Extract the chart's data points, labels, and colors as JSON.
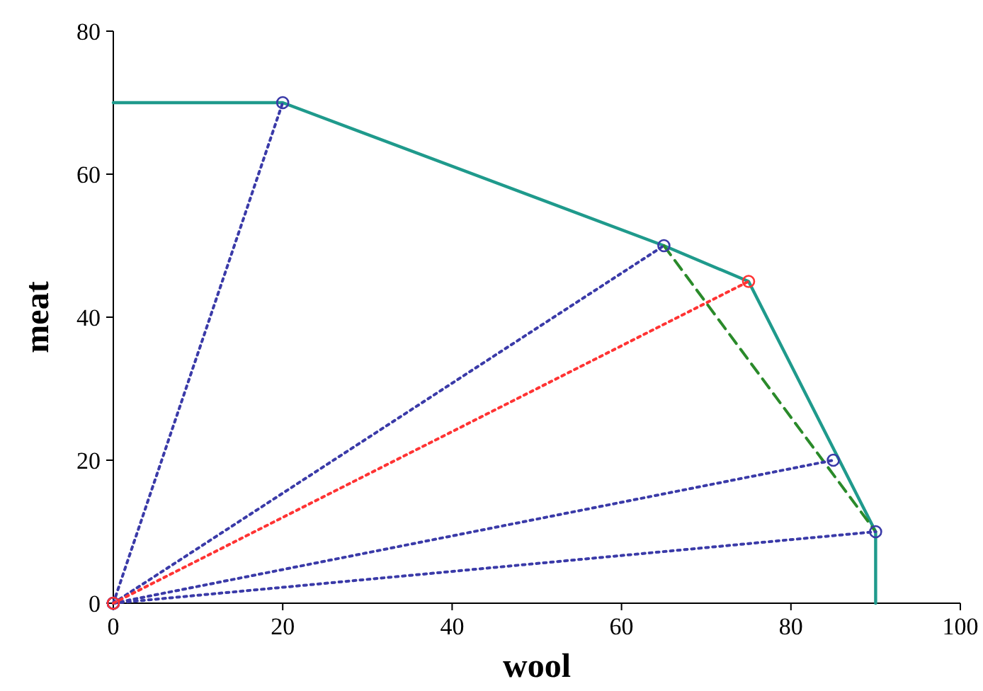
{
  "chart_data": {
    "type": "line",
    "xlabel": "wool",
    "ylabel": "meat",
    "xlim": [
      0,
      100
    ],
    "ylim": [
      0,
      80
    ],
    "xticks": [
      0,
      20,
      40,
      60,
      80,
      100
    ],
    "yticks": [
      0,
      20,
      40,
      60,
      80
    ],
    "grid": false,
    "series": [
      {
        "x": [
          0,
          20,
          65,
          75,
          90,
          90
        ],
        "values": [
          70,
          70,
          50,
          45,
          10,
          0
        ],
        "color": "#1f9a8c",
        "line_style": "solid",
        "marker": "none"
      },
      {
        "x": [
          65,
          90
        ],
        "values": [
          50,
          10
        ],
        "color": "#2a8a2a",
        "line_style": "dashed",
        "marker": "none"
      },
      {
        "x": [
          0,
          20
        ],
        "values": [
          0,
          70
        ],
        "color": "#3a3aa8",
        "line_style": "dotted",
        "marker": "circle"
      },
      {
        "x": [
          0,
          65
        ],
        "values": [
          0,
          50
        ],
        "color": "#3a3aa8",
        "line_style": "dotted",
        "marker": "circle"
      },
      {
        "x": [
          0,
          85
        ],
        "values": [
          0,
          20
        ],
        "color": "#3a3aa8",
        "line_style": "dotted",
        "marker": "circle"
      },
      {
        "x": [
          0,
          90
        ],
        "values": [
          0,
          10
        ],
        "color": "#3a3aa8",
        "line_style": "dotted",
        "marker": "circle"
      },
      {
        "x": [
          0,
          75
        ],
        "values": [
          0,
          45
        ],
        "color": "#ff3333",
        "line_style": "dotted",
        "marker": "circle"
      }
    ]
  }
}
